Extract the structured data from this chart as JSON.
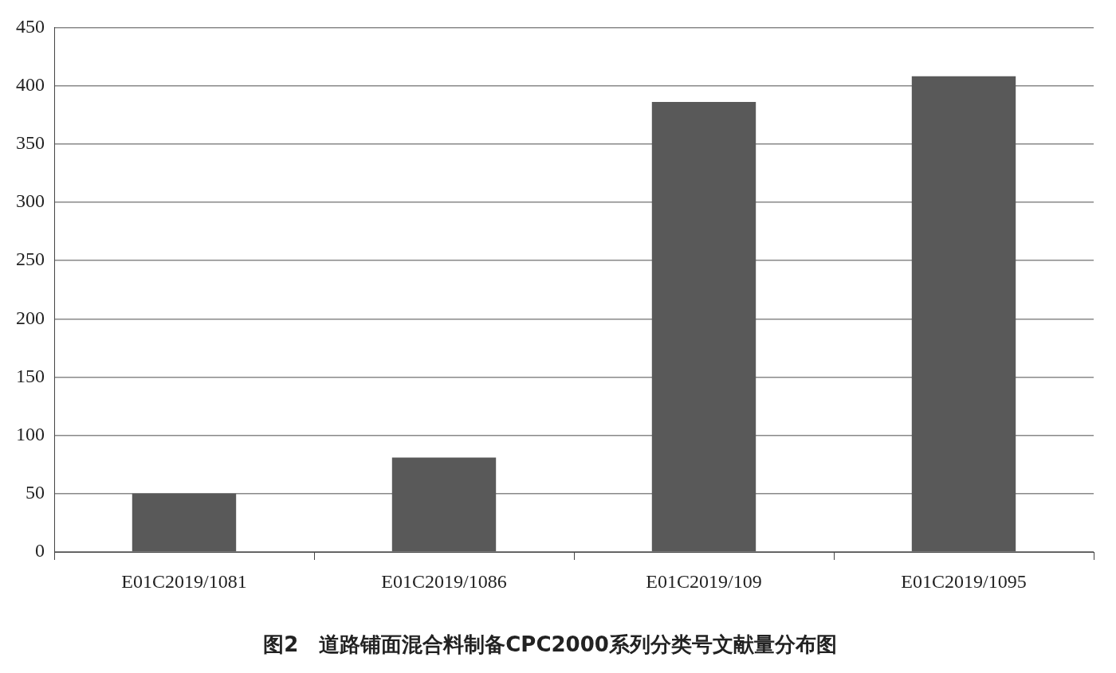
{
  "chart_data": {
    "type": "bar",
    "title": "图2　道路铺面混合料制备CPC2000系列分类号文献量分布图",
    "categories": [
      "E01C2019/1081",
      "E01C2019/1086",
      "E01C2019/109",
      "E01C2019/1095"
    ],
    "values": [
      50,
      81,
      386,
      408
    ],
    "color": "#595959",
    "ylim": [
      0,
      450
    ],
    "yticks": [
      0,
      50,
      100,
      150,
      200,
      250,
      300,
      350,
      400,
      450
    ],
    "grid": "y",
    "legend": false
  }
}
